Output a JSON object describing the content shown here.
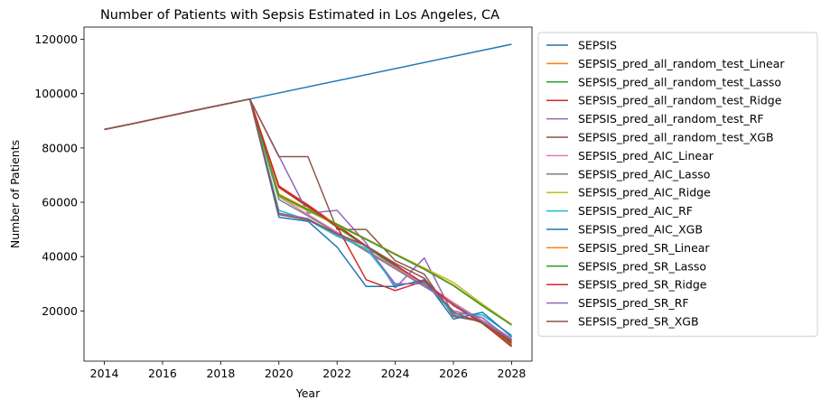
{
  "chart_data": {
    "type": "line",
    "title": "Number of Patients with Sepsis Estimated in Los Angeles, CA",
    "xlabel": "Year",
    "ylabel": "Number of Patients",
    "xlim": [
      2013.3,
      2028.7
    ],
    "ylim": [
      1500,
      124500
    ],
    "xticks": [
      2014,
      2016,
      2018,
      2020,
      2022,
      2024,
      2026,
      2028
    ],
    "yticks": [
      20000,
      40000,
      60000,
      80000,
      100000,
      120000
    ],
    "xtick_labels": [
      "2014",
      "2016",
      "2018",
      "2020",
      "2022",
      "2024",
      "2026",
      "2028"
    ],
    "ytick_labels": [
      "20000",
      "40000",
      "60000",
      "80000",
      "100000",
      "120000"
    ],
    "grid": false,
    "legend": "outside-right",
    "series": [
      {
        "name": "SEPSIS",
        "color": "#1f77b4",
        "x": [
          2014,
          2019,
          2028
        ],
        "y": [
          86800,
          98000,
          118200
        ]
      },
      {
        "name": "SEPSIS_pred_all_random_test_Linear",
        "color": "#ff7f0e",
        "x": [
          2014,
          2015,
          2016,
          2017,
          2018,
          2019,
          2020,
          2021,
          2022,
          2023,
          2024,
          2025,
          2026,
          2027,
          2028
        ],
        "y": [
          86800,
          89000,
          91300,
          93600,
          95800,
          98000,
          66000,
          58500,
          51000,
          43800,
          36500,
          29500,
          22500,
          15500,
          7500
        ]
      },
      {
        "name": "SEPSIS_pred_all_random_test_Lasso",
        "color": "#2ca02c",
        "x": [
          2014,
          2015,
          2016,
          2017,
          2018,
          2019,
          2020,
          2021,
          2022,
          2023,
          2024,
          2025,
          2026,
          2027,
          2028
        ],
        "y": [
          86800,
          89000,
          91300,
          93600,
          95800,
          98000,
          65500,
          58200,
          50800,
          43600,
          36300,
          29300,
          22300,
          15300,
          7300
        ]
      },
      {
        "name": "SEPSIS_pred_all_random_test_Ridge",
        "color": "#d62728",
        "x": [
          2014,
          2015,
          2016,
          2017,
          2018,
          2019,
          2020,
          2021,
          2022,
          2023,
          2024,
          2025,
          2026,
          2027,
          2028
        ],
        "y": [
          86800,
          89000,
          91300,
          93600,
          95800,
          98000,
          66000,
          59000,
          51500,
          44000,
          37000,
          30000,
          23000,
          16000,
          8000
        ]
      },
      {
        "name": "SEPSIS_pred_all_random_test_RF",
        "color": "#9467bd",
        "x": [
          2014,
          2015,
          2016,
          2017,
          2018,
          2019,
          2020,
          2021,
          2022,
          2023,
          2024,
          2025,
          2026,
          2027,
          2028
        ],
        "y": [
          86800,
          89000,
          91300,
          93600,
          95800,
          98000,
          77000,
          56000,
          57000,
          45000,
          28500,
          39500,
          18500,
          16500,
          9500
        ]
      },
      {
        "name": "SEPSIS_pred_all_random_test_XGB",
        "color": "#8c564b",
        "x": [
          2014,
          2015,
          2016,
          2017,
          2018,
          2019,
          2020,
          2021,
          2022,
          2023,
          2024,
          2025,
          2026,
          2027,
          2028
        ],
        "y": [
          86800,
          89000,
          91300,
          93600,
          95800,
          98000,
          76800,
          76800,
          50000,
          50000,
          38500,
          33500,
          18000,
          16000,
          8500
        ]
      },
      {
        "name": "SEPSIS_pred_AIC_Linear",
        "color": "#e377c2",
        "x": [
          2014,
          2015,
          2016,
          2017,
          2018,
          2019,
          2020,
          2021,
          2022,
          2023,
          2024,
          2025,
          2026,
          2027,
          2028
        ],
        "y": [
          86800,
          89000,
          91300,
          93600,
          95800,
          98000,
          62000,
          55500,
          49000,
          42500,
          36000,
          29500,
          23000,
          16500,
          10000
        ]
      },
      {
        "name": "SEPSIS_pred_AIC_Lasso",
        "color": "#7f7f7f",
        "x": [
          2014,
          2015,
          2016,
          2017,
          2018,
          2019,
          2020,
          2021,
          2022,
          2023,
          2024,
          2025,
          2026,
          2027,
          2028
        ],
        "y": [
          86800,
          89000,
          91300,
          93600,
          95800,
          98000,
          61000,
          55000,
          48500,
          42000,
          35500,
          29000,
          22500,
          16000,
          9500
        ]
      },
      {
        "name": "SEPSIS_pred_AIC_Ridge",
        "color": "#bcbd22",
        "x": [
          2014,
          2015,
          2016,
          2017,
          2018,
          2019,
          2020,
          2021,
          2022,
          2023,
          2024,
          2025,
          2026,
          2027,
          2028
        ],
        "y": [
          86800,
          89000,
          91300,
          93600,
          95800,
          98000,
          62000,
          56800,
          51500,
          46300,
          41000,
          35800,
          30500,
          22500,
          15000
        ]
      },
      {
        "name": "SEPSIS_pred_AIC_RF",
        "color": "#17becf",
        "x": [
          2014,
          2015,
          2016,
          2017,
          2018,
          2019,
          2020,
          2021,
          2022,
          2023,
          2024,
          2025,
          2026,
          2027,
          2028
        ],
        "y": [
          86800,
          89000,
          91300,
          93600,
          95800,
          98000,
          57000,
          53500,
          47500,
          43000,
          29500,
          30500,
          19000,
          18500,
          11000
        ]
      },
      {
        "name": "SEPSIS_pred_AIC_XGB",
        "color": "#1f77b4",
        "x": [
          2014,
          2015,
          2016,
          2017,
          2018,
          2019,
          2020,
          2021,
          2022,
          2023,
          2024,
          2025,
          2026,
          2027,
          2028
        ],
        "y": [
          86800,
          89000,
          91300,
          93600,
          95800,
          98000,
          54500,
          53000,
          43500,
          29000,
          29000,
          31500,
          17000,
          19500,
          10500
        ]
      },
      {
        "name": "SEPSIS_pred_SR_Linear",
        "color": "#ff7f0e",
        "x": [
          2014,
          2015,
          2016,
          2017,
          2018,
          2019,
          2020,
          2021,
          2022,
          2023,
          2024,
          2025,
          2026,
          2027,
          2028
        ],
        "y": [
          86800,
          89000,
          91300,
          93600,
          95800,
          98000,
          63000,
          57500,
          52000,
          46500,
          41000,
          35500,
          29500,
          22000,
          15000
        ]
      },
      {
        "name": "SEPSIS_pred_SR_Lasso",
        "color": "#2ca02c",
        "x": [
          2014,
          2015,
          2016,
          2017,
          2018,
          2019,
          2020,
          2021,
          2022,
          2023,
          2024,
          2025,
          2026,
          2027,
          2028
        ],
        "y": [
          86800,
          89000,
          91300,
          93600,
          95800,
          98000,
          62500,
          57200,
          51800,
          46300,
          40800,
          35300,
          29300,
          21800,
          14800
        ]
      },
      {
        "name": "SEPSIS_pred_SR_Ridge",
        "color": "#d62728",
        "x": [
          2014,
          2015,
          2016,
          2017,
          2018,
          2019,
          2020,
          2021,
          2022,
          2023,
          2024,
          2025,
          2026,
          2027,
          2028
        ],
        "y": [
          86800,
          89000,
          91300,
          93600,
          95800,
          98000,
          65500,
          58500,
          51000,
          31500,
          27500,
          31000,
          22000,
          15500,
          6800
        ]
      },
      {
        "name": "SEPSIS_pred_SR_RF",
        "color": "#9467bd",
        "x": [
          2014,
          2015,
          2016,
          2017,
          2018,
          2019,
          2020,
          2021,
          2022,
          2023,
          2024,
          2025,
          2026,
          2027,
          2028
        ],
        "y": [
          86800,
          89000,
          91300,
          93600,
          95800,
          98000,
          56000,
          54000,
          48000,
          44000,
          30000,
          30000,
          20000,
          17500,
          9000
        ]
      },
      {
        "name": "SEPSIS_pred_SR_XGB",
        "color": "#8c564b",
        "x": [
          2014,
          2015,
          2016,
          2017,
          2018,
          2019,
          2020,
          2021,
          2022,
          2023,
          2024,
          2025,
          2026,
          2027,
          2028
        ],
        "y": [
          86800,
          89000,
          91300,
          93600,
          95800,
          98000,
          55500,
          53500,
          48500,
          44000,
          37500,
          32000,
          19500,
          15500,
          9000
        ]
      }
    ]
  }
}
